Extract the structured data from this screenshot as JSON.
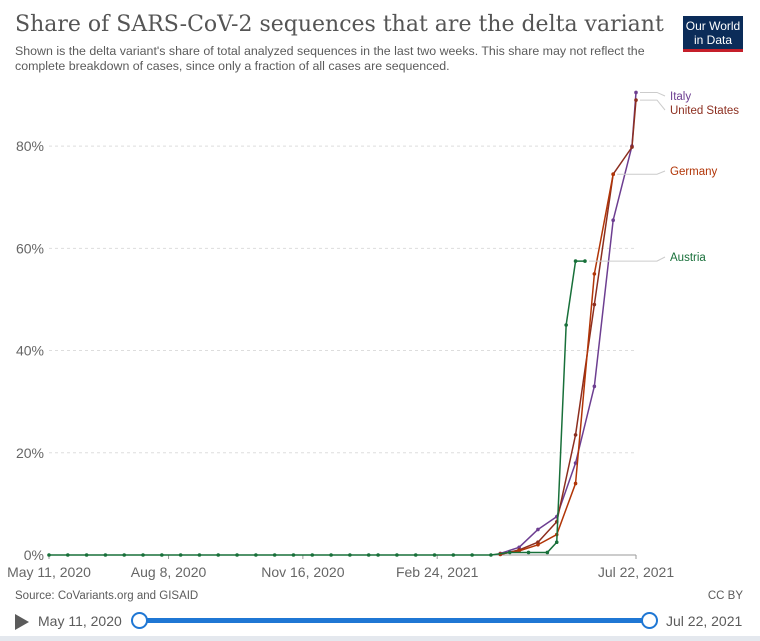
{
  "header": {
    "title": "Share of SARS-CoV-2 sequences that are the delta variant",
    "subtitle": "Shown is the delta variant's share of total analyzed sequences in the last two weeks. This share may not reflect the complete breakdown of cases, since only a fraction of all cases are sequenced.",
    "logo_line1": "Our World",
    "logo_line2": "in Data"
  },
  "footer": {
    "source": "Source: CoVariants.org and GISAID",
    "license": "CC BY"
  },
  "timeline": {
    "start_label": "May 11, 2020",
    "end_label": "Jul 22, 2021"
  },
  "colors": {
    "Italy": "#6d3e91",
    "United States": "#8c2e1f",
    "Germany": "#b13507",
    "Austria": "#18703a",
    "slider": "#1f77d4"
  },
  "chart_data": {
    "type": "line",
    "xlabel": "",
    "ylabel": "",
    "ylim": [
      0,
      90
    ],
    "yticks": [
      0,
      20,
      40,
      60,
      80
    ],
    "ytick_labels": [
      "0%",
      "20%",
      "40%",
      "60%",
      "80%"
    ],
    "xticks": [
      "May 11, 2020",
      "Aug 8, 2020",
      "Nov 16, 2020",
      "Feb 24, 2021",
      "Jul 22, 2021"
    ],
    "grid": "horizontal",
    "legend": "right-end labels",
    "x_start": "2020-05-11",
    "x_end": "2021-07-22",
    "series": [
      {
        "name": "Italy",
        "color": "#6d3e91",
        "x": [
          "2021-04-12",
          "2021-04-26",
          "2021-05-10",
          "2021-05-24",
          "2021-06-07",
          "2021-06-21",
          "2021-07-05",
          "2021-07-19",
          "2021-07-22"
        ],
        "values": [
          0.3,
          1.5,
          5,
          7.5,
          18,
          33,
          65.5,
          80,
          90.5
        ]
      },
      {
        "name": "United States",
        "color": "#8c2e1f",
        "x": [
          "2021-04-12",
          "2021-04-26",
          "2021-05-10",
          "2021-05-24",
          "2021-06-07",
          "2021-06-21",
          "2021-07-05",
          "2021-07-19",
          "2021-07-22"
        ],
        "values": [
          0.1,
          1,
          2.5,
          6.5,
          23.5,
          49,
          74.5,
          79.8,
          89
        ]
      },
      {
        "name": "Germany",
        "color": "#b13507",
        "x": [
          "2021-04-12",
          "2021-04-26",
          "2021-05-10",
          "2021-05-24",
          "2021-06-07",
          "2021-06-21",
          "2021-07-05"
        ],
        "values": [
          0.2,
          0.8,
          2,
          4,
          14,
          55,
          74.5
        ]
      },
      {
        "name": "Austria",
        "color": "#18703a",
        "x": [
          "2020-05-11",
          "2020-05-25",
          "2020-06-08",
          "2020-06-22",
          "2020-07-06",
          "2020-07-20",
          "2020-08-03",
          "2020-08-17",
          "2020-08-31",
          "2020-09-14",
          "2020-09-28",
          "2020-10-12",
          "2020-10-26",
          "2020-11-09",
          "2020-11-23",
          "2020-12-07",
          "2020-12-21",
          "2021-01-04",
          "2021-01-11",
          "2021-01-25",
          "2021-02-08",
          "2021-02-22",
          "2021-03-08",
          "2021-03-22",
          "2021-04-05",
          "2021-04-19",
          "2021-05-03",
          "2021-05-17",
          "2021-05-24",
          "2021-05-31",
          "2021-06-07",
          "2021-06-14"
        ],
        "values": [
          0,
          0,
          0,
          0,
          0,
          0,
          0,
          0,
          0,
          0,
          0,
          0,
          0,
          0,
          0,
          0,
          0,
          0,
          0,
          0,
          0,
          0,
          0,
          0,
          0,
          0.5,
          0.5,
          0.5,
          2.5,
          45,
          57.5,
          57.5
        ]
      }
    ]
  }
}
